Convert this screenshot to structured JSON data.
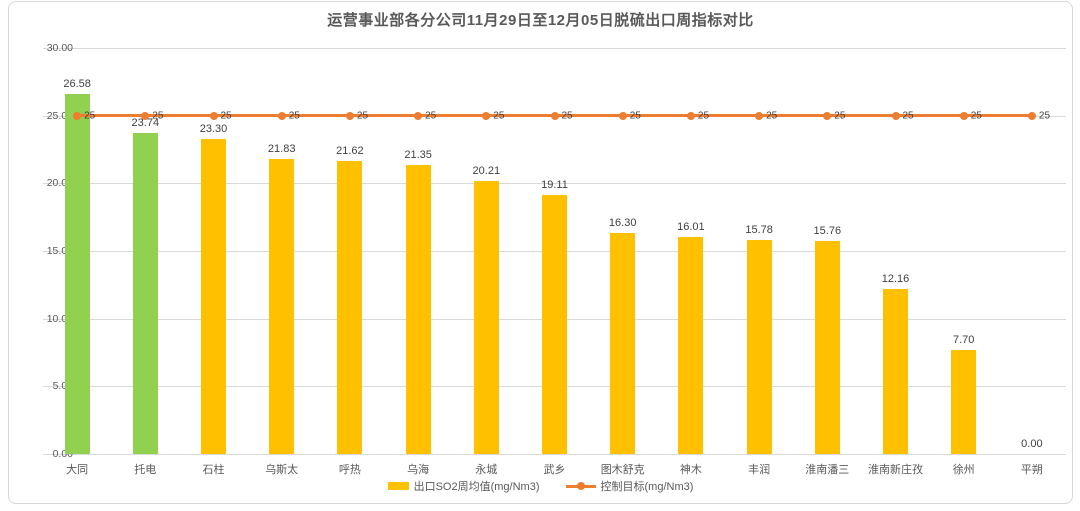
{
  "chart_data": {
    "type": "bar",
    "title": "运营事业部各分公司11月29日至12月05日脱硫出口周指标对比",
    "categories": [
      "大同",
      "托电",
      "石柱",
      "乌斯太",
      "呼热",
      "乌海",
      "永城",
      "武乡",
      "图木舒克",
      "神木",
      "丰润",
      "淮南潘三",
      "淮南新庄孜",
      "徐州",
      "平朔"
    ],
    "series": [
      {
        "name": "出口SO2周均值(mg/Nm3)",
        "type": "bar",
        "values": [
          26.58,
          23.74,
          23.3,
          21.83,
          21.62,
          21.35,
          20.21,
          19.11,
          16.3,
          16.01,
          15.78,
          15.76,
          12.16,
          7.7,
          0.0
        ],
        "value_labels": [
          "26.58",
          "23.74",
          "23.30",
          "21.83",
          "21.62",
          "21.35",
          "20.21",
          "19.11",
          "16.30",
          "16.01",
          "15.78",
          "15.76",
          "12.16",
          "7.70",
          "0.00"
        ]
      },
      {
        "name": "控制目标(mg/Nm3)",
        "type": "line",
        "values": [
          25,
          25,
          25,
          25,
          25,
          25,
          25,
          25,
          25,
          25,
          25,
          25,
          25,
          25,
          25
        ],
        "value_labels": [
          "25",
          "25",
          "25",
          "25",
          "25",
          "25",
          "25",
          "25",
          "25",
          "25",
          "25",
          "25",
          "25",
          "25",
          "25"
        ]
      }
    ],
    "ylim": [
      0,
      30
    ],
    "yticks": [
      {
        "value": 0,
        "label": "0.00"
      },
      {
        "value": 5,
        "label": "5.00"
      },
      {
        "value": 10,
        "label": "10.00"
      },
      {
        "value": 15,
        "label": "15.00"
      },
      {
        "value": 20,
        "label": "20.00"
      },
      {
        "value": 25,
        "label": "25.00"
      },
      {
        "value": 30,
        "label": "30.00"
      }
    ],
    "grid": true,
    "legend_position": "bottom",
    "colors": {
      "bar_default": "#FFC000",
      "bar_highlight": "#92D050",
      "bar_highlight_indices": [
        0,
        1
      ],
      "line": "#ED7D31",
      "title_text": "#595959",
      "label_text": "#404040",
      "axis_text": "#595959",
      "gridline": "#D9D9D9"
    }
  },
  "legend": {
    "bar_series_label": "出口SO2周均值(mg/Nm3)",
    "line_series_label": "控制目标(mg/Nm3)"
  }
}
